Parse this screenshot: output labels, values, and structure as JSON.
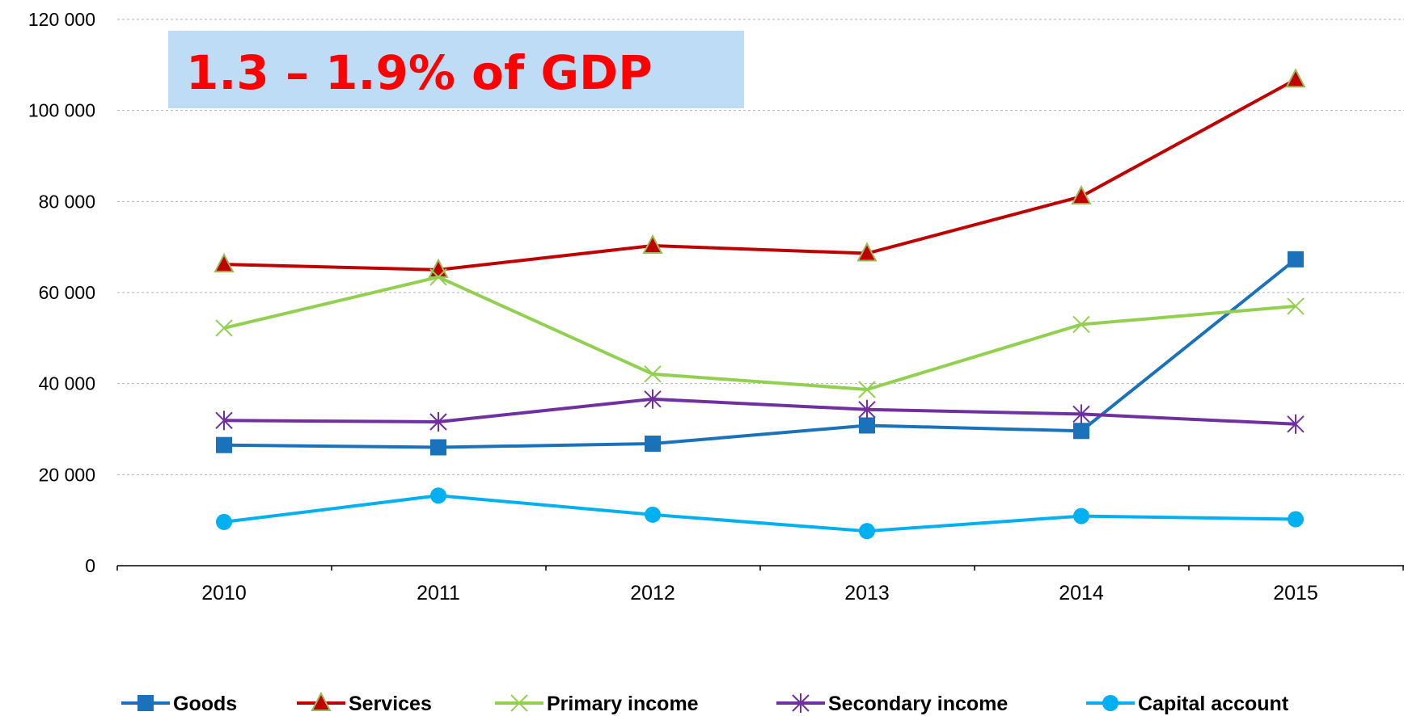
{
  "chart_data": {
    "type": "line",
    "title": "",
    "xlabel": "",
    "ylabel": "",
    "categories": [
      "2010",
      "2011",
      "2012",
      "2013",
      "2014",
      "2015"
    ],
    "ylim": [
      0,
      120000
    ],
    "yticks": [
      0,
      20000,
      40000,
      60000,
      80000,
      100000,
      120000
    ],
    "ytick_labels": [
      "0",
      "20 000",
      "40 000",
      "60 000",
      "80 000",
      "100 000",
      "120 000"
    ],
    "grid": "horizontal dashed",
    "legend_position": "bottom",
    "annotation": {
      "text": "1.3 – 1.9% of GDP",
      "text_color": "#ff0000",
      "background_color": "#bfdcf7"
    },
    "series": [
      {
        "name": "Goods",
        "color": "#1a72bb",
        "marker": "square",
        "values": [
          26500,
          26000,
          26800,
          30800,
          29600,
          67300
        ]
      },
      {
        "name": "Services",
        "color": "#c00000",
        "marker": "triangle",
        "values": [
          66200,
          65000,
          70300,
          68600,
          81100,
          106800
        ]
      },
      {
        "name": "Primary income",
        "color": "#92d050",
        "marker": "x",
        "values": [
          52200,
          63400,
          42100,
          38700,
          53000,
          57000
        ]
      },
      {
        "name": "Secondary income",
        "color": "#7030a0",
        "marker": "star",
        "values": [
          31900,
          31600,
          36600,
          34300,
          33300,
          31100
        ]
      },
      {
        "name": "Capital account",
        "color": "#00b0f0",
        "marker": "circle",
        "values": [
          9600,
          15400,
          11200,
          7600,
          10900,
          10200
        ]
      }
    ]
  }
}
